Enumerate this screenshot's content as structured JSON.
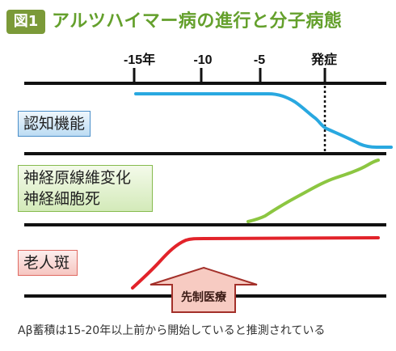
{
  "figure": {
    "badge": "図1",
    "title": "アルツハイマー病の進行と分子病態"
  },
  "timeline": {
    "ticks": [
      "-15年",
      "-10",
      "-5",
      "発症"
    ]
  },
  "rows": [
    {
      "label_lines": [
        "認知機能"
      ],
      "line_color": "#29a8e0"
    },
    {
      "label_lines": [
        "神経原線維変化",
        "神経細胞死"
      ],
      "line_color": "#8cc641"
    },
    {
      "label_lines": [
        "老人斑"
      ],
      "line_color": "#e2232a"
    }
  ],
  "intervention": {
    "label": "先制医療",
    "fill_color": "#f7cbc2",
    "outline_color": "#a3302a"
  },
  "footnote": "Aβ蓄積は15-20年以上前から開始していると推測されている"
}
